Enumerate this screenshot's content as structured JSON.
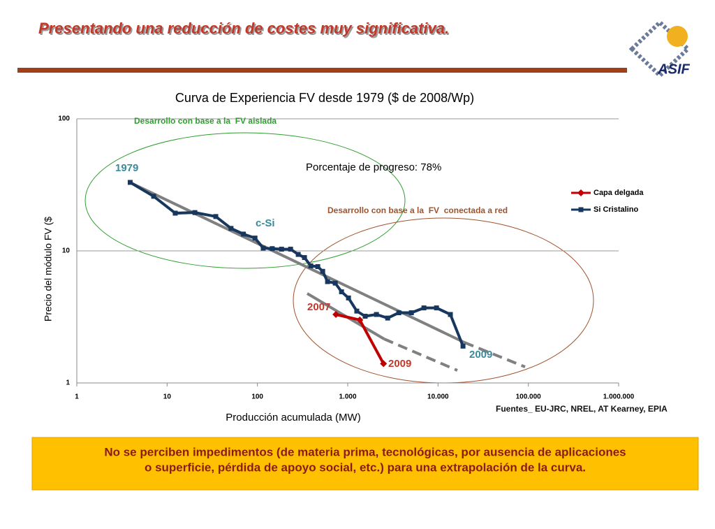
{
  "slide": {
    "title": "Presentando una reducción de costes muy significativa.",
    "logo": "ASIF",
    "source": "Fuentes_ EU-JRC, NREL, AT Kearney, EPIA",
    "note": [
      "No se perciben impedimentos (de materia prima, tecnológicas, por ausencia de aplicaciones",
      "o superficie, pérdida de apoyo social, etc.) para una extrapolación de la curva."
    ]
  },
  "chart_data": {
    "type": "line",
    "title": "Curva de Experiencia FV desde 1979 ($ de 2008/Wp)",
    "x_label": "Producción acumulada (MW)",
    "y_label": "Precio del módulo FV ($",
    "x_log": true,
    "y_log": true,
    "grid": true,
    "legend": "right",
    "xlim": [
      1,
      1000000
    ],
    "xticks": [
      1,
      10,
      100,
      {
        "value": 1000,
        "label": "1.000"
      },
      {
        "value": 10000,
        "label": "10.000"
      },
      {
        "value": 100000,
        "label": "100.000"
      },
      {
        "value": 1000000,
        "label": "1.000.000"
      }
    ],
    "ylim": [
      1,
      100
    ],
    "yticks": [
      1,
      10,
      100
    ],
    "series": [
      {
        "name": "Capa delgada",
        "color": "#c00000",
        "marker": "diamond",
        "x": [
          740,
          1360,
          2490
        ],
        "values": [
          3.3,
          3.0,
          1.4
        ]
      },
      {
        "name": "Si Cristalino",
        "color": "#17375e",
        "marker": "square",
        "x": [
          3.9,
          7.1,
          12.3,
          20.3,
          34.6,
          51,
          70,
          94,
          116,
          146,
          185,
          233,
          283,
          332,
          390,
          466,
          528,
          598,
          728,
          854,
          1020,
          1260,
          1560,
          2080,
          2770,
          3680,
          5070,
          6980,
          9620,
          13700,
          18900
        ],
        "values": [
          33,
          25.9,
          19.3,
          19.5,
          18.2,
          14.8,
          13.4,
          12.5,
          10.5,
          10.4,
          10.3,
          10.3,
          9.4,
          8.9,
          7.7,
          7.6,
          7.0,
          5.85,
          5.7,
          4.9,
          4.4,
          3.5,
          3.2,
          3.3,
          3.1,
          3.4,
          3.4,
          3.7,
          3.7,
          3.3,
          1.9
        ]
      }
    ],
    "annotations": [
      "Desarrollo con base a la  FV aislada",
      "Porcentaje de progreso: 78%",
      "Desarrollo con base a la  FV  conectada a red",
      "1979",
      "c-Si",
      "2007",
      "2009",
      "2009"
    ]
  }
}
